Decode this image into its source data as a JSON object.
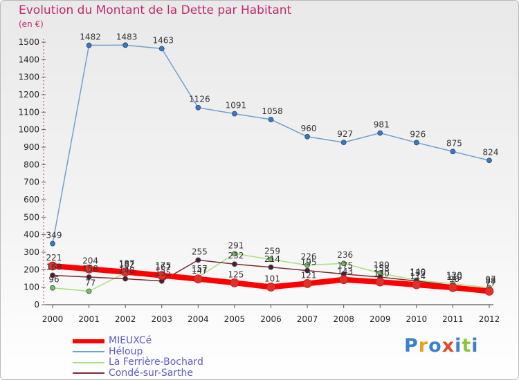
{
  "title": "Evolution du Montant de la Dette par Habitant",
  "unit_label": "(en €)",
  "logo": {
    "text": "Proxiti",
    "colors": [
      "#3a7fd0",
      "#e8a21a",
      "#3a7fd0",
      "#e04a26",
      "#3a7fd0",
      "#8cc63f",
      "#3a7fd0"
    ]
  },
  "chart_data": {
    "type": "line",
    "title": "Evolution du Montant de la Dette par Habitant",
    "ylabel": "(en €)",
    "xlabel": "",
    "x": [
      "2000",
      "2001",
      "2002",
      "2003",
      "2004",
      "2005",
      "2006",
      "2007",
      "2008",
      "2009",
      "2010",
      "2011",
      "2012"
    ],
    "ylim": [
      0,
      1500
    ],
    "yticks": [
      0,
      100,
      200,
      300,
      400,
      500,
      600,
      700,
      800,
      900,
      1000,
      1100,
      1200,
      1300,
      1400,
      1500
    ],
    "grid": false,
    "legend_position": "bottom-left",
    "series": [
      {
        "name": "MIEUXCé",
        "color": "#ff0000",
        "point_color": "#e0302a",
        "values": [
          221,
          204,
          187,
          167,
          147,
          125,
          101,
          121,
          143,
          130,
          114,
          98,
          77
        ],
        "labels": [
          "221",
          "204",
          "187",
          "167",
          "147",
          "125",
          "101",
          "121",
          "143",
          "130",
          "114",
          "98",
          "77"
        ]
      },
      {
        "name": "Héloup",
        "color": "#6ea0d2",
        "point_color": "#3a78c0",
        "values": [
          349,
          1482,
          1483,
          1463,
          1126,
          1091,
          1058,
          960,
          927,
          981,
          926,
          875,
          824
        ],
        "labels": [
          "349",
          "1482",
          "1483",
          "1463",
          "1126",
          "1091",
          "1058",
          "960",
          "927",
          "981",
          "926",
          "875",
          "824"
        ]
      },
      {
        "name": "La Ferrière-Bochard",
        "color": "#a8e07e",
        "point_color": "#7cc04a",
        "values": [
          96,
          77,
          182,
          175,
          157,
          291,
          259,
          226,
          236,
          180,
          140,
          120,
          97
        ],
        "labels": [
          "96",
          "77",
          "182",
          "175",
          "157",
          "291",
          "259",
          "226",
          "236",
          "180",
          "140",
          "120",
          "97"
        ]
      },
      {
        "name": "Condé-sur-Sarthe",
        "color": "#7a2a30",
        "point_color": "#5a1a20",
        "values": [
          168,
          158,
          148,
          135,
          255,
          232,
          214,
          195,
          175,
          158,
          135,
          110,
          88
        ],
        "labels": [
          "168",
          "158",
          "148",
          "135",
          "255",
          "232",
          "214",
          "195",
          "175",
          "158",
          "135",
          "110",
          "88"
        ]
      }
    ]
  }
}
